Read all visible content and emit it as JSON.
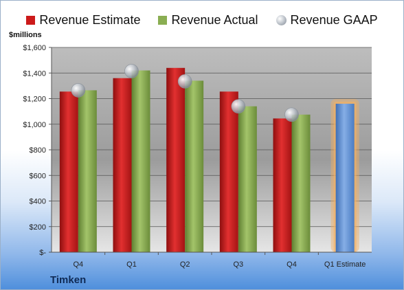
{
  "chart_data": {
    "type": "bar",
    "unit_label": "$millions",
    "company": "Timken",
    "categories": [
      "Q4",
      "Q1",
      "Q2",
      "Q3",
      "Q4",
      "Q1 Estimate"
    ],
    "series": [
      {
        "name": "Revenue Estimate",
        "kind": "bar",
        "color": "#cc1a1a",
        "values": [
          1255,
          1360,
          1440,
          1255,
          1045,
          null
        ]
      },
      {
        "name": "Revenue Actual",
        "kind": "bar",
        "color": "#8aae52",
        "values": [
          1265,
          1420,
          1340,
          1140,
          1075,
          null
        ]
      },
      {
        "name": "Revenue GAAP",
        "kind": "marker",
        "color": "#aab0b8",
        "values": [
          1265,
          1415,
          1335,
          1140,
          1075,
          null
        ]
      }
    ],
    "forecast": {
      "category_index": 5,
      "value": 1160,
      "color": "#5b8ed1",
      "glow": "#f5b060"
    },
    "ylim": [
      0,
      1600
    ],
    "yticks": [
      0,
      200,
      400,
      600,
      800,
      1000,
      1200,
      1400,
      1600
    ],
    "ytick_labels": [
      "$-",
      "$200",
      "$400",
      "$600",
      "$800",
      "$1,000",
      "$1,200",
      "$1,400",
      "$1,600"
    ],
    "grid": true,
    "legend": "top"
  }
}
